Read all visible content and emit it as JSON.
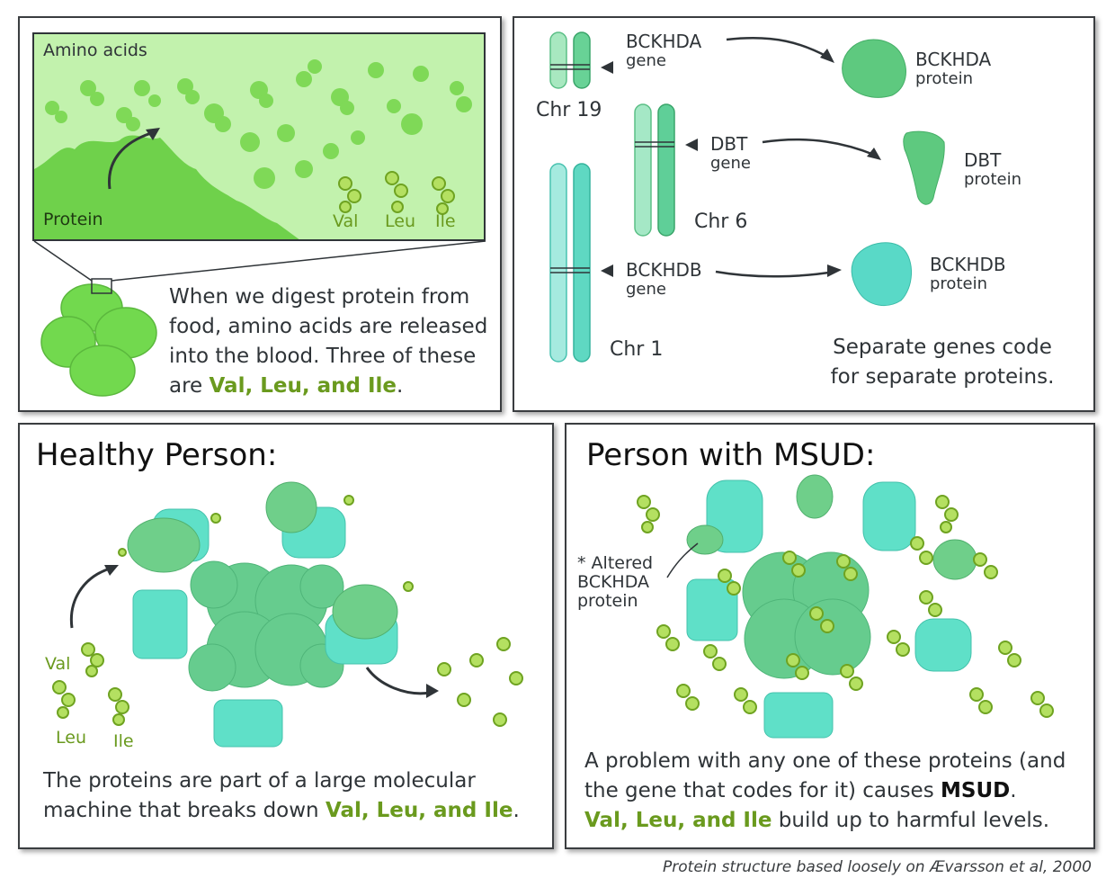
{
  "top_left": {
    "amino_acids_label": "Amino acids",
    "protein_label": "Protein",
    "val": "Val",
    "leu": "Leu",
    "ile": "Ile",
    "text_before": "When we digest protein from food, amino acids are released into the blood. Three of these are ",
    "text_highlight": "Val, Leu, and Ile",
    "text_after": "."
  },
  "top_right": {
    "genes": [
      {
        "name": "BCKHDA",
        "sub": "gene",
        "chromosome": "Chr 19",
        "protein": "BCKHDA",
        "protein_sub": "protein"
      },
      {
        "name": "DBT",
        "sub": "gene",
        "chromosome": "Chr 6",
        "protein": "DBT",
        "protein_sub": "protein"
      },
      {
        "name": "BCKHDB",
        "sub": "gene",
        "chromosome": "Chr 1",
        "protein": "BCKHDB",
        "protein_sub": "protein"
      }
    ],
    "caption_line1": "Separate genes code",
    "caption_line2": "for separate proteins."
  },
  "healthy": {
    "title": "Healthy Person:",
    "val": "Val",
    "leu": "Leu",
    "ile": "Ile",
    "text_line1": "The proteins are part of a large molecular",
    "text_line2_before": "machine that breaks down ",
    "text_highlight": "Val, Leu, and Ile",
    "text_after": "."
  },
  "msud": {
    "title": "Person with MSUD:",
    "altered_line1": "* Altered",
    "altered_line2": "BCKHDA",
    "altered_line3": "protein",
    "text_line1": "A problem with any one of these proteins (and",
    "text_line2_before": "the gene that codes for it) causes ",
    "text_line2_bold": "MSUD",
    "text_line2_after": ".",
    "text_line3_highlight": "Val, Leu, and Ile",
    "text_line3_after": " build up to harmful levels."
  },
  "credit": "Protein structure based loosely on Ævarsson et al, 2000",
  "colors": {
    "amino_green": "#b4e061",
    "amino_stroke": "#6fa321",
    "light_green_bg": "#bdf0a6",
    "protein_green": "#5ec97f",
    "protein_teal": "#59d9c7",
    "highlight_text": "#6a9a1e"
  }
}
